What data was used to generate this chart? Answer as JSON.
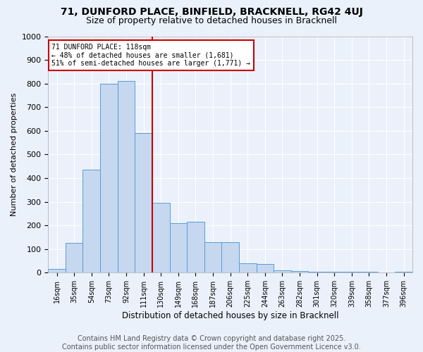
{
  "title1": "71, DUNFORD PLACE, BINFIELD, BRACKNELL, RG42 4UJ",
  "title2": "Size of property relative to detached houses in Bracknell",
  "xlabel": "Distribution of detached houses by size in Bracknell",
  "ylabel": "Number of detached properties",
  "categories": [
    "16sqm",
    "35sqm",
    "54sqm",
    "73sqm",
    "92sqm",
    "111sqm",
    "130sqm",
    "149sqm",
    "168sqm",
    "187sqm",
    "206sqm",
    "225sqm",
    "244sqm",
    "263sqm",
    "282sqm",
    "301sqm",
    "320sqm",
    "339sqm",
    "358sqm",
    "377sqm",
    "396sqm"
  ],
  "bar_heights": [
    15,
    125,
    435,
    800,
    810,
    590,
    295,
    210,
    215,
    130,
    130,
    40,
    35,
    10,
    8,
    5,
    5,
    3,
    3,
    2,
    5
  ],
  "bar_color": "#c5d8f0",
  "bar_edge_color": "#5b9bd5",
  "reference_line_x": 5.5,
  "annotation_text": "71 DUNFORD PLACE: 118sqm\n← 48% of detached houses are smaller (1,681)\n51% of semi-detached houses are larger (1,771) →",
  "annotation_box_color": "#ffffff",
  "annotation_box_edge": "#cc0000",
  "vline_color": "#cc0000",
  "ylim": [
    0,
    1000
  ],
  "yticks": [
    0,
    100,
    200,
    300,
    400,
    500,
    600,
    700,
    800,
    900,
    1000
  ],
  "footnote": "Contains HM Land Registry data © Crown copyright and database right 2025.\nContains public sector information licensed under the Open Government Licence v3.0.",
  "bg_color": "#eaf1fb",
  "plot_bg_color": "#eaf1fb",
  "grid_color": "#ffffff",
  "title_fontsize": 10,
  "subtitle_fontsize": 9,
  "footnote_fontsize": 7,
  "ylabel_fontsize": 8,
  "xlabel_fontsize": 8.5,
  "tick_fontsize": 7,
  "annot_fontsize": 7
}
